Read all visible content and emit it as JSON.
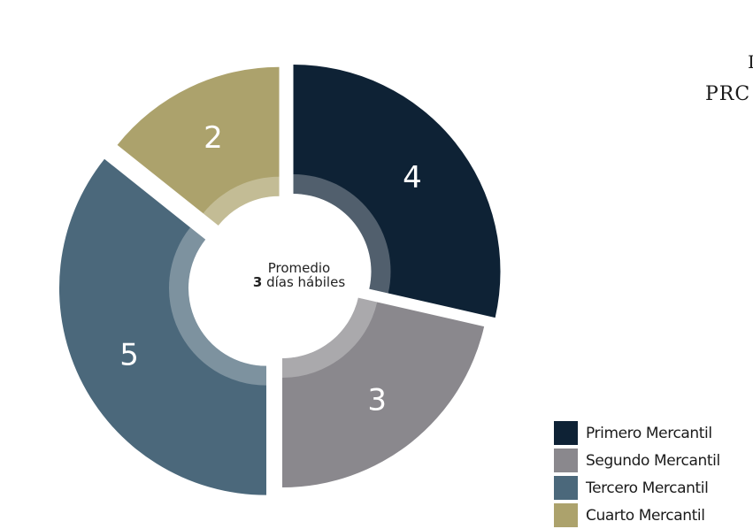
{
  "chart_data": {
    "type": "pie",
    "style": "exploded donut",
    "categories": [
      "Primero Mercantil",
      "Segundo Mercantil",
      "Tercero Mercantil",
      "Cuarto Mercantil"
    ],
    "values": [
      4,
      3,
      5,
      2
    ],
    "colors": [
      "#0e2235",
      "#8a888d",
      "#4b687b",
      "#aca26c"
    ],
    "legend_position": "bottom-right",
    "center": {
      "line1": "Promedio",
      "value": "3",
      "line2": "días hábiles"
    }
  },
  "title": {
    "line1": "I",
    "line2": "PRC"
  }
}
